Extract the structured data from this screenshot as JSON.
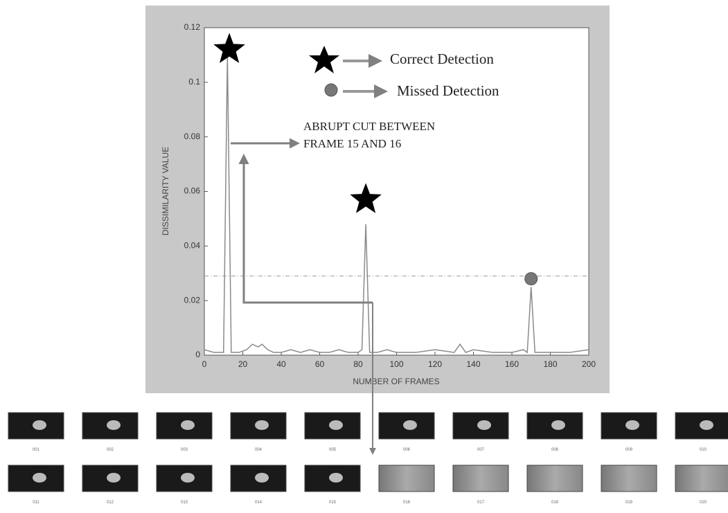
{
  "chart_data": {
    "type": "line",
    "x_label": "NUMBER OF FRAMES",
    "y_label": "DISSIMILARITY VALUE",
    "xlim": [
      0,
      200
    ],
    "xticks": [
      0,
      20,
      40,
      60,
      80,
      100,
      120,
      140,
      160,
      180,
      200
    ],
    "ylim": [
      0,
      0.12
    ],
    "yticks": [
      0,
      0.02,
      0.04,
      0.06,
      0.08,
      0.1,
      0.12
    ],
    "threshold": 0.029,
    "series": [
      {
        "color": "#8a8a8a",
        "x": [
          0,
          5,
          10,
          12,
          14,
          18,
          22,
          25,
          28,
          30,
          33,
          36,
          40,
          45,
          50,
          55,
          60,
          65,
          70,
          75,
          80,
          82,
          84,
          86,
          90,
          95,
          100,
          110,
          120,
          130,
          133,
          136,
          140,
          150,
          160,
          166,
          168,
          170,
          172,
          180,
          190,
          200
        ],
        "values": [
          0.002,
          0.001,
          0.001,
          0.11,
          0.001,
          0.001,
          0.002,
          0.004,
          0.003,
          0.004,
          0.002,
          0.001,
          0.001,
          0.002,
          0.001,
          0.002,
          0.001,
          0.001,
          0.002,
          0.001,
          0.001,
          0.002,
          0.048,
          0.001,
          0.001,
          0.002,
          0.001,
          0.001,
          0.002,
          0.001,
          0.004,
          0.001,
          0.002,
          0.001,
          0.001,
          0.002,
          0.001,
          0.025,
          0.001,
          0.001,
          0.001,
          0.002
        ]
      }
    ],
    "detections": {
      "correct": {
        "x": [
          13,
          84
        ],
        "y": [
          0.112,
          0.057
        ]
      },
      "missed": {
        "x": [
          170
        ],
        "y": [
          0.028
        ]
      }
    },
    "legend": [
      "Correct Detection",
      "Missed Detection"
    ],
    "annotation": [
      "ABRUPT CUT BETWEEN",
      "FRAME 15 AND 16"
    ]
  },
  "thumbnails": {
    "labels": [
      "001",
      "002",
      "003",
      "004",
      "005",
      "006",
      "007",
      "008",
      "009",
      "010",
      "011",
      "012",
      "013",
      "014",
      "015",
      "016",
      "017",
      "018",
      "019",
      "020"
    ]
  }
}
